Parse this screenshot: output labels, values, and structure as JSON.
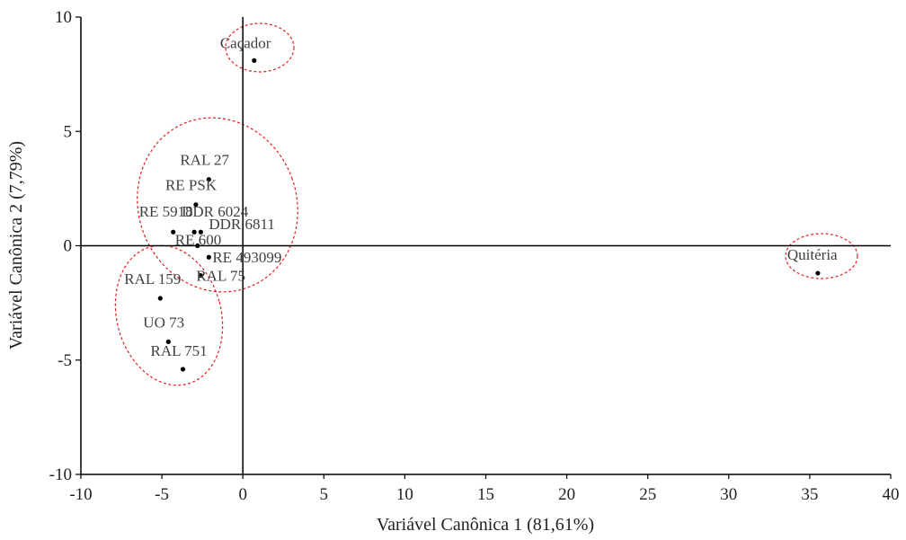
{
  "chart_data": {
    "type": "scatter",
    "title": "",
    "xlabel": "Variável Canônica 1 (81,61%)",
    "ylabel": "Variável Canônica 2 (7,79%)",
    "xlim": [
      -10,
      40
    ],
    "ylim": [
      -10,
      10
    ],
    "x_ticks": [
      -10,
      -5,
      0,
      5,
      10,
      15,
      20,
      25,
      30,
      35,
      40
    ],
    "y_ticks": [
      -10,
      -5,
      0,
      5,
      10
    ],
    "grid": false,
    "points": [
      {
        "label": "Caçador",
        "x": 0.7,
        "y": 8.1
      },
      {
        "label": "RAL 27",
        "x": -2.1,
        "y": 2.9
      },
      {
        "label": "RE PSK",
        "x": -2.9,
        "y": 1.8
      },
      {
        "label": "RE 5918",
        "x": -4.3,
        "y": 0.6
      },
      {
        "label": "DDR 6024",
        "x": -3.0,
        "y": 0.6
      },
      {
        "label": "DDR 6811",
        "x": -2.6,
        "y": 0.6
      },
      {
        "label": "RE 600",
        "x": -2.8,
        "y": 0.0
      },
      {
        "label": "RE 493099",
        "x": -2.1,
        "y": -0.5
      },
      {
        "label": "RAL 75",
        "x": -2.6,
        "y": -1.3
      },
      {
        "label": "RAL 159",
        "x": -5.1,
        "y": -2.3
      },
      {
        "label": "UO 73",
        "x": -4.6,
        "y": -4.2
      },
      {
        "label": "RAL 751",
        "x": -3.7,
        "y": -5.4
      },
      {
        "label": "Quitéria",
        "x": 35.5,
        "y": -1.2
      }
    ]
  }
}
